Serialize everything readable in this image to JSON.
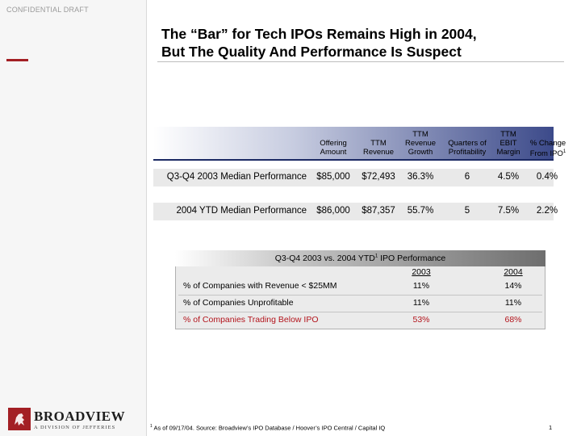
{
  "confidential": "CONFIDENTIAL DRAFT",
  "title": {
    "line1": "The “Bar” for Tech IPOs Remains High in 2004,",
    "line2": "But The Quality And Performance Is Suspect"
  },
  "metrics_table": {
    "headers": [
      {
        "l1": "",
        "l2": "Offering",
        "l3": "Amount"
      },
      {
        "l1": "",
        "l2": "TTM",
        "l3": "Revenue"
      },
      {
        "l1": "TTM",
        "l2": "Revenue",
        "l3": "Growth"
      },
      {
        "l1": "",
        "l2": "Quarters of",
        "l3": "Profitability"
      },
      {
        "l1": "TTM",
        "l2": "EBIT",
        "l3": "Margin"
      },
      {
        "l1": "",
        "l2": "% Change",
        "l3": "From IPO",
        "sup": "1"
      }
    ],
    "rows": [
      {
        "label": "Q3-Q4 2003 Median Performance",
        "values": [
          "$85,000",
          "$72,493",
          "36.3%",
          "6",
          "4.5%",
          "0.4%"
        ]
      },
      {
        "label": "2004 YTD Median Performance",
        "values": [
          "$86,000",
          "$87,357",
          "55.7%",
          "5",
          "7.5%",
          "2.2%"
        ]
      }
    ]
  },
  "comparison": {
    "title_pre": "Q3-Q4 2003 vs. 2004 YTD",
    "title_sup": "1",
    "title_post": " IPO Performance",
    "years": [
      "2003",
      "2004"
    ],
    "rows": [
      {
        "label": "% of Companies with Revenue < $25MM",
        "v2003": "11%",
        "v2004": "14%"
      },
      {
        "label": "% of Companies Unprofitable",
        "v2003": "11%",
        "v2004": "11%"
      },
      {
        "label": "% of Companies Trading Below IPO",
        "v2003": "53%",
        "v2004": "68%"
      }
    ]
  },
  "footnote": {
    "sup": "1",
    "text": " As of 09/17/04. Source: Broadview’s IPO Database / Hoover’s IPO Central / Capital IQ"
  },
  "page_number": "1",
  "logo": {
    "name": "BROADVIEW",
    "sub": "A DIVISION OF JEFFERIES"
  },
  "colors": {
    "accent": "#a31f24",
    "header_dark": "#3c4a8a",
    "highlight_red": "#b3141c"
  }
}
